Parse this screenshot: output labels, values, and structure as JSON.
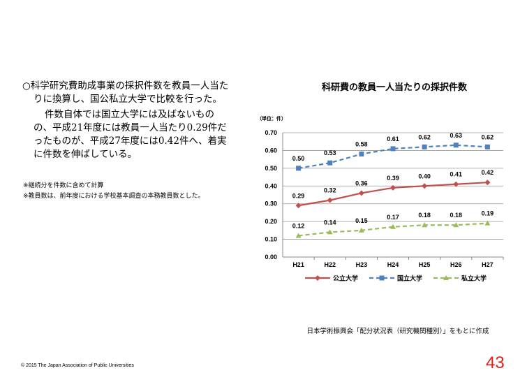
{
  "body": {
    "para1": "○科学研究費助成事業の採択件数を教員一人当たりに換算し、国公私立大学で比較を行った。",
    "para2": "件数自体では国立大学には及ばないものの、平成21年度には教員一人当たり0.29件だったものが、平成27年度には0.42件へ、着実に件数を伸ばしている。",
    "notes": [
      "※継続分を件数に含めて計算",
      "※教員数は、前年度における学校基本調査の本務教員数とした。"
    ]
  },
  "source": "日本学術振興会「配分状況表（研究機関種別）」をもとに作成",
  "footer": "©  2015   The Japan Association of Public Universities",
  "page_number": "43",
  "chart_data": {
    "type": "line",
    "title": "科研費の教員一人当たりの採択件数",
    "unit_label": "（単位：件）",
    "categories": [
      "H21",
      "H22",
      "H23",
      "H24",
      "H25",
      "H26",
      "H27"
    ],
    "ylim": [
      0,
      0.7
    ],
    "yticks": [
      "0.00",
      "0.10",
      "0.20",
      "0.30",
      "0.40",
      "0.50",
      "0.60",
      "0.70"
    ],
    "grid": true,
    "legend_position": "bottom",
    "series": [
      {
        "name": "公立大学",
        "color": "#c0504d",
        "marker": "diamond",
        "dash": false,
        "values": [
          0.29,
          0.32,
          0.36,
          0.39,
          0.4,
          0.41,
          0.42
        ],
        "labels": [
          "0.29",
          "0.32",
          "0.36",
          "0.39",
          "0.40",
          "0.41",
          "0.42"
        ]
      },
      {
        "name": "国立大学",
        "color": "#4f81bd",
        "marker": "square",
        "dash": true,
        "values": [
          0.5,
          0.53,
          0.58,
          0.61,
          0.62,
          0.63,
          0.62
        ],
        "labels": [
          "0.50",
          "0.53",
          "0.58",
          "0.61",
          "0.62",
          "0.63",
          "0.62"
        ]
      },
      {
        "name": "私立大学",
        "color": "#9bbb59",
        "marker": "triangle",
        "dash": true,
        "values": [
          0.12,
          0.14,
          0.15,
          0.17,
          0.18,
          0.18,
          0.19
        ],
        "labels": [
          "0.12",
          "0.14",
          "0.15",
          "0.17",
          "0.18",
          "0.18",
          "0.19"
        ]
      }
    ]
  }
}
